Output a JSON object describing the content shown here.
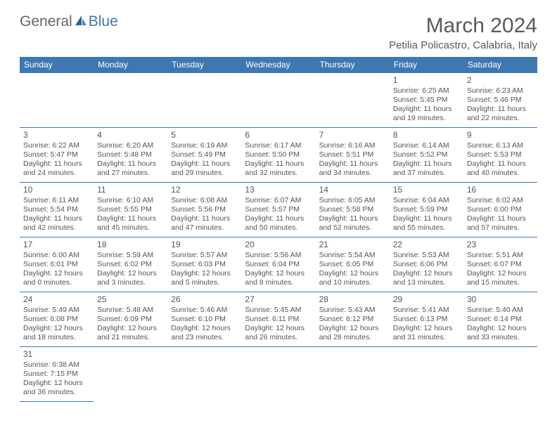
{
  "logo": {
    "word1": "General",
    "word2": "Blue"
  },
  "title": "March 2024",
  "location": "Petilia Policastro, Calabria, Italy",
  "colors": {
    "header_bg": "#3e78b3",
    "header_fg": "#ffffff",
    "border": "#3e78b3",
    "text": "#555555",
    "title": "#5a5a5a",
    "logo_gray": "#666666",
    "logo_blue": "#3e78b3",
    "background": "#ffffff"
  },
  "typography": {
    "title_fontsize": 30,
    "location_fontsize": 15,
    "logo_fontsize": 21,
    "dayheader_fontsize": 12,
    "cell_fontsize": 10.5,
    "daynum_fontsize": 12
  },
  "day_headers": [
    "Sunday",
    "Monday",
    "Tuesday",
    "Wednesday",
    "Thursday",
    "Friday",
    "Saturday"
  ],
  "weeks": [
    [
      null,
      null,
      null,
      null,
      null,
      {
        "n": "1",
        "sr": "Sunrise: 6:25 AM",
        "ss": "Sunset: 5:45 PM",
        "dl": "Daylight: 11 hours and 19 minutes."
      },
      {
        "n": "2",
        "sr": "Sunrise: 6:23 AM",
        "ss": "Sunset: 5:46 PM",
        "dl": "Daylight: 11 hours and 22 minutes."
      }
    ],
    [
      {
        "n": "3",
        "sr": "Sunrise: 6:22 AM",
        "ss": "Sunset: 5:47 PM",
        "dl": "Daylight: 11 hours and 24 minutes."
      },
      {
        "n": "4",
        "sr": "Sunrise: 6:20 AM",
        "ss": "Sunset: 5:48 PM",
        "dl": "Daylight: 11 hours and 27 minutes."
      },
      {
        "n": "5",
        "sr": "Sunrise: 6:19 AM",
        "ss": "Sunset: 5:49 PM",
        "dl": "Daylight: 11 hours and 29 minutes."
      },
      {
        "n": "6",
        "sr": "Sunrise: 6:17 AM",
        "ss": "Sunset: 5:50 PM",
        "dl": "Daylight: 11 hours and 32 minutes."
      },
      {
        "n": "7",
        "sr": "Sunrise: 6:16 AM",
        "ss": "Sunset: 5:51 PM",
        "dl": "Daylight: 11 hours and 34 minutes."
      },
      {
        "n": "8",
        "sr": "Sunrise: 6:14 AM",
        "ss": "Sunset: 5:52 PM",
        "dl": "Daylight: 11 hours and 37 minutes."
      },
      {
        "n": "9",
        "sr": "Sunrise: 6:13 AM",
        "ss": "Sunset: 5:53 PM",
        "dl": "Daylight: 11 hours and 40 minutes."
      }
    ],
    [
      {
        "n": "10",
        "sr": "Sunrise: 6:11 AM",
        "ss": "Sunset: 5:54 PM",
        "dl": "Daylight: 11 hours and 42 minutes."
      },
      {
        "n": "11",
        "sr": "Sunrise: 6:10 AM",
        "ss": "Sunset: 5:55 PM",
        "dl": "Daylight: 11 hours and 45 minutes."
      },
      {
        "n": "12",
        "sr": "Sunrise: 6:08 AM",
        "ss": "Sunset: 5:56 PM",
        "dl": "Daylight: 11 hours and 47 minutes."
      },
      {
        "n": "13",
        "sr": "Sunrise: 6:07 AM",
        "ss": "Sunset: 5:57 PM",
        "dl": "Daylight: 11 hours and 50 minutes."
      },
      {
        "n": "14",
        "sr": "Sunrise: 6:05 AM",
        "ss": "Sunset: 5:58 PM",
        "dl": "Daylight: 11 hours and 52 minutes."
      },
      {
        "n": "15",
        "sr": "Sunrise: 6:04 AM",
        "ss": "Sunset: 5:59 PM",
        "dl": "Daylight: 11 hours and 55 minutes."
      },
      {
        "n": "16",
        "sr": "Sunrise: 6:02 AM",
        "ss": "Sunset: 6:00 PM",
        "dl": "Daylight: 11 hours and 57 minutes."
      }
    ],
    [
      {
        "n": "17",
        "sr": "Sunrise: 6:00 AM",
        "ss": "Sunset: 6:01 PM",
        "dl": "Daylight: 12 hours and 0 minutes."
      },
      {
        "n": "18",
        "sr": "Sunrise: 5:59 AM",
        "ss": "Sunset: 6:02 PM",
        "dl": "Daylight: 12 hours and 3 minutes."
      },
      {
        "n": "19",
        "sr": "Sunrise: 5:57 AM",
        "ss": "Sunset: 6:03 PM",
        "dl": "Daylight: 12 hours and 5 minutes."
      },
      {
        "n": "20",
        "sr": "Sunrise: 5:56 AM",
        "ss": "Sunset: 6:04 PM",
        "dl": "Daylight: 12 hours and 8 minutes."
      },
      {
        "n": "21",
        "sr": "Sunrise: 5:54 AM",
        "ss": "Sunset: 6:05 PM",
        "dl": "Daylight: 12 hours and 10 minutes."
      },
      {
        "n": "22",
        "sr": "Sunrise: 5:53 AM",
        "ss": "Sunset: 6:06 PM",
        "dl": "Daylight: 12 hours and 13 minutes."
      },
      {
        "n": "23",
        "sr": "Sunrise: 5:51 AM",
        "ss": "Sunset: 6:07 PM",
        "dl": "Daylight: 12 hours and 15 minutes."
      }
    ],
    [
      {
        "n": "24",
        "sr": "Sunrise: 5:49 AM",
        "ss": "Sunset: 6:08 PM",
        "dl": "Daylight: 12 hours and 18 minutes."
      },
      {
        "n": "25",
        "sr": "Sunrise: 5:48 AM",
        "ss": "Sunset: 6:09 PM",
        "dl": "Daylight: 12 hours and 21 minutes."
      },
      {
        "n": "26",
        "sr": "Sunrise: 5:46 AM",
        "ss": "Sunset: 6:10 PM",
        "dl": "Daylight: 12 hours and 23 minutes."
      },
      {
        "n": "27",
        "sr": "Sunrise: 5:45 AM",
        "ss": "Sunset: 6:11 PM",
        "dl": "Daylight: 12 hours and 26 minutes."
      },
      {
        "n": "28",
        "sr": "Sunrise: 5:43 AM",
        "ss": "Sunset: 6:12 PM",
        "dl": "Daylight: 12 hours and 28 minutes."
      },
      {
        "n": "29",
        "sr": "Sunrise: 5:41 AM",
        "ss": "Sunset: 6:13 PM",
        "dl": "Daylight: 12 hours and 31 minutes."
      },
      {
        "n": "30",
        "sr": "Sunrise: 5:40 AM",
        "ss": "Sunset: 6:14 PM",
        "dl": "Daylight: 12 hours and 33 minutes."
      }
    ],
    [
      {
        "n": "31",
        "sr": "Sunrise: 6:38 AM",
        "ss": "Sunset: 7:15 PM",
        "dl": "Daylight: 12 hours and 36 minutes."
      },
      null,
      null,
      null,
      null,
      null,
      null
    ]
  ]
}
